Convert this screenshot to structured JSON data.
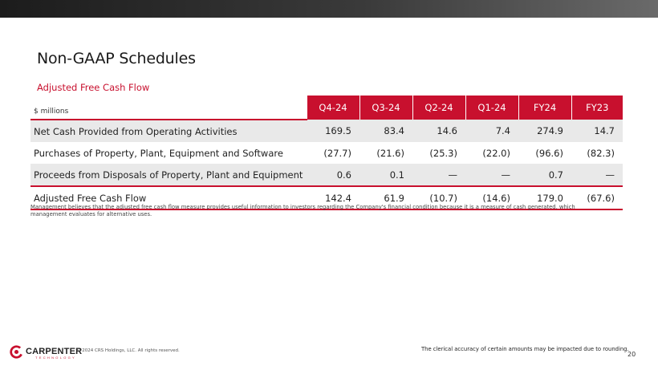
{
  "slide": {
    "title": "Non-GAAP Schedules",
    "subtitle": "Adjusted Free Cash Flow",
    "accent_color": "#c8102e",
    "page_number": "20"
  },
  "table": {
    "unit_label": "$ millions",
    "columns": [
      "Q4-24",
      "Q3-24",
      "Q2-24",
      "Q1-24",
      "FY24",
      "FY23"
    ],
    "rows": [
      {
        "label": "Net Cash Provided from Operating Activities",
        "values": [
          "169.5",
          "83.4",
          "14.6",
          "7.4",
          "274.9",
          "14.7"
        ]
      },
      {
        "label": "Purchases of Property, Plant, Equipment and Software",
        "values": [
          "(27.7)",
          "(21.6)",
          "(25.3)",
          "(22.0)",
          "(96.6)",
          "(82.3)"
        ]
      },
      {
        "label": "Proceeds from Disposals of Property, Plant and Equipment",
        "values": [
          "0.6",
          "0.1",
          "—",
          "—",
          "0.7",
          "—"
        ]
      },
      {
        "label": "Adjusted Free Cash Flow",
        "values": [
          "142.4",
          "61.9",
          "(10.7)",
          "(14.6)",
          "179.0",
          "(67.6)"
        ]
      }
    ]
  },
  "note": "Management believes that the adjusted free cash flow measure provides useful information to investors regarding the Company's financial condition because it is a measure of cash generated, which management evaluates for alternative uses.",
  "footer": {
    "logo_text": "CARPENTER",
    "logo_subtext": "TECHNOLOGY",
    "logo_icon": "carpenter-logo-icon",
    "copyright": "© 2024 CRS Holdings, LLC. All rights reserved.",
    "rounding_note": "The clerical accuracy of certain amounts may be impacted due to rounding."
  }
}
